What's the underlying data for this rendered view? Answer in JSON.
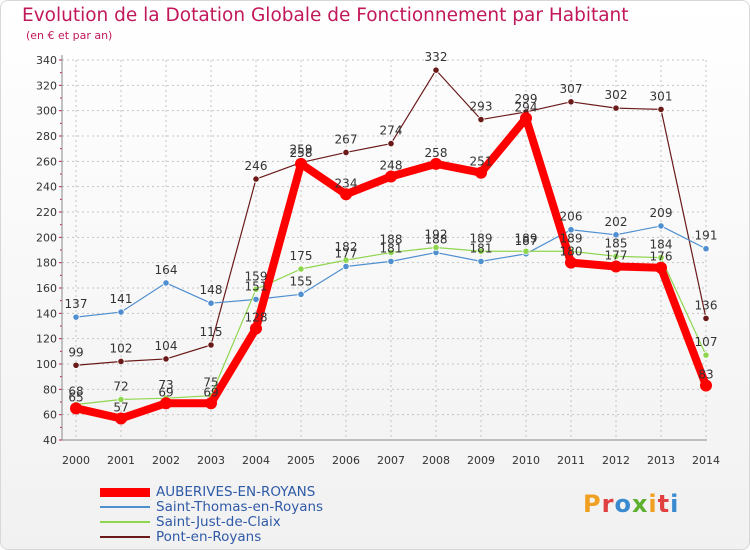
{
  "header": {
    "title": "Evolution de la Dotation Globale de Fonctionnement par Habitant",
    "subtitle": "(en € et par an)"
  },
  "branding": {
    "logo_text": "Proxiti",
    "logo_colors": [
      "#f0a020",
      "#e04040",
      "#3a8ad0",
      "#60b030",
      "#f0a020",
      "#e04040",
      "#3a8ad0"
    ]
  },
  "chart_data": {
    "type": "line",
    "title": "Evolution de la Dotation Globale de Fonctionnement par Habitant",
    "subtitle": "(en € et par an)",
    "xlabel": "",
    "ylabel": "",
    "ylim": [
      40,
      340
    ],
    "yticks": [
      40,
      60,
      80,
      100,
      120,
      140,
      160,
      180,
      200,
      220,
      240,
      260,
      280,
      300,
      320,
      340
    ],
    "grid": true,
    "legend_position": "bottom-left",
    "categories": [
      "2000",
      "2001",
      "2002",
      "2003",
      "2004",
      "2005",
      "2006",
      "2007",
      "2008",
      "2009",
      "2010",
      "2011",
      "2012",
      "2013",
      "2014"
    ],
    "series": [
      {
        "name": "AUBERIVES-EN-ROYANS",
        "color": "#ff0000",
        "values": [
          65,
          57,
          69,
          69,
          128,
          258,
          234,
          248,
          258,
          251,
          294,
          180,
          177,
          176,
          83
        ]
      },
      {
        "name": "Saint-Thomas-en-Royans",
        "color": "#4f8fcf",
        "values": [
          137,
          141,
          164,
          148,
          151,
          155,
          177,
          181,
          188,
          181,
          187,
          206,
          202,
          209,
          191
        ]
      },
      {
        "name": "Saint-Just-de-Claix",
        "color": "#8fd64f",
        "values": [
          68,
          72,
          73,
          75,
          159,
          175,
          182,
          188,
          192,
          189,
          189,
          189,
          185,
          184,
          107
        ]
      },
      {
        "name": "Pont-en-Royans",
        "color": "#6b1a1a",
        "values": [
          99,
          102,
          104,
          115,
          246,
          259,
          267,
          274,
          332,
          293,
          299,
          307,
          302,
          301,
          136
        ]
      }
    ]
  }
}
